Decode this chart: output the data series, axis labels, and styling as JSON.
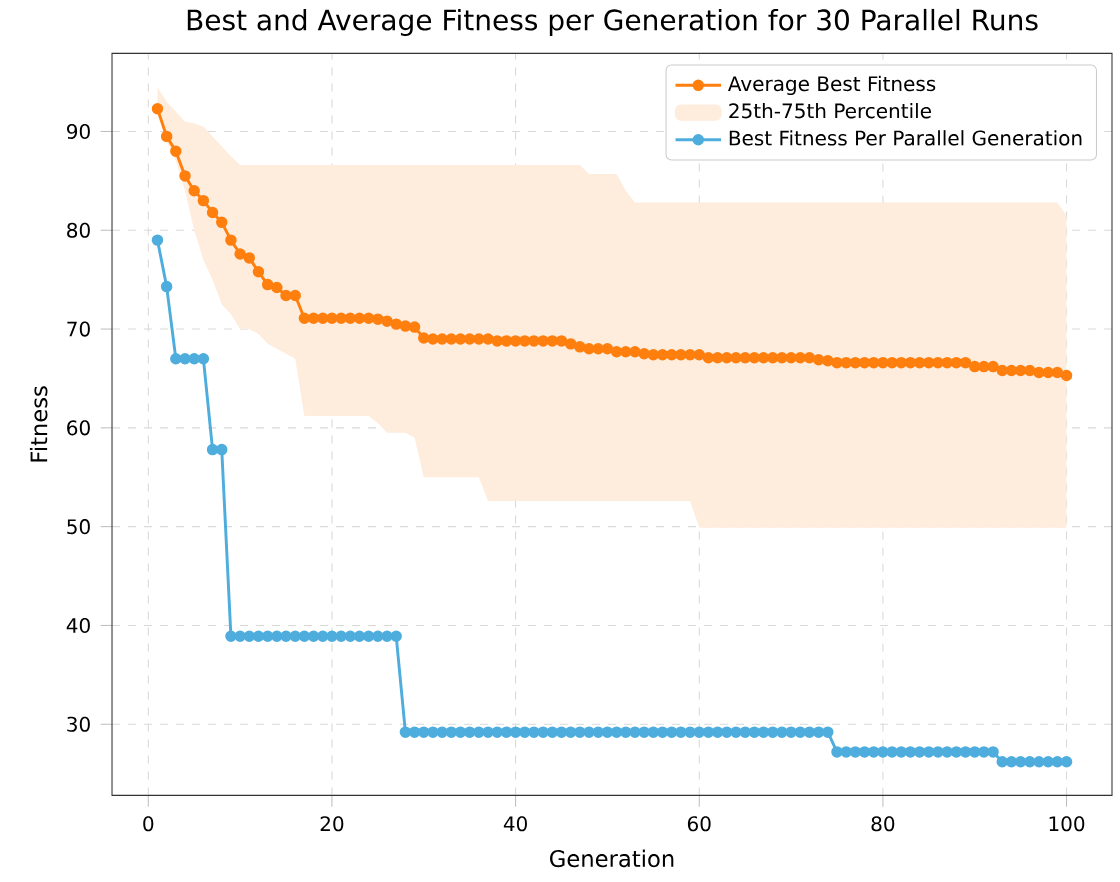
{
  "chart_data": {
    "type": "line",
    "title": "Best and Average Fitness per Generation for 30 Parallel Runs",
    "xlabel": "Generation",
    "ylabel": "Fitness",
    "x": [
      1,
      2,
      3,
      4,
      5,
      6,
      7,
      8,
      9,
      10,
      11,
      12,
      13,
      14,
      15,
      16,
      17,
      18,
      19,
      20,
      21,
      22,
      23,
      24,
      25,
      26,
      27,
      28,
      29,
      30,
      31,
      32,
      33,
      34,
      35,
      36,
      37,
      38,
      39,
      40,
      41,
      42,
      43,
      44,
      45,
      46,
      47,
      48,
      49,
      50,
      51,
      52,
      53,
      54,
      55,
      56,
      57,
      58,
      59,
      60,
      61,
      62,
      63,
      64,
      65,
      66,
      67,
      68,
      69,
      70,
      71,
      72,
      73,
      74,
      75,
      76,
      77,
      78,
      79,
      80,
      81,
      82,
      83,
      84,
      85,
      86,
      87,
      88,
      89,
      90,
      91,
      92,
      93,
      94,
      95,
      96,
      97,
      98,
      99,
      100
    ],
    "series": [
      {
        "name": "Average Best Fitness",
        "color": "#ff7f0e",
        "values": [
          92.3,
          89.5,
          88,
          85.5,
          84,
          83,
          81.8,
          80.8,
          79,
          77.6,
          77.2,
          75.8,
          74.5,
          74.2,
          73.4,
          73.4,
          71.1,
          71.1,
          71.1,
          71.1,
          71.1,
          71.1,
          71.1,
          71.1,
          71,
          70.8,
          70.5,
          70.3,
          70.2,
          69.1,
          69,
          69,
          69,
          69,
          69,
          69,
          69,
          68.8,
          68.8,
          68.8,
          68.8,
          68.8,
          68.8,
          68.8,
          68.8,
          68.5,
          68.2,
          68,
          68,
          68,
          67.7,
          67.7,
          67.7,
          67.5,
          67.4,
          67.4,
          67.4,
          67.4,
          67.4,
          67.4,
          67.1,
          67.1,
          67.1,
          67.1,
          67.1,
          67.1,
          67.1,
          67.1,
          67.1,
          67.1,
          67.1,
          67.1,
          66.9,
          66.8,
          66.6,
          66.6,
          66.6,
          66.6,
          66.6,
          66.6,
          66.6,
          66.6,
          66.6,
          66.6,
          66.6,
          66.6,
          66.6,
          66.6,
          66.6,
          66.2,
          66.2,
          66.2,
          65.8,
          65.8,
          65.8,
          65.8,
          65.6,
          65.6,
          65.6,
          65.3
        ]
      },
      {
        "type": "area",
        "name": "25th-75th Percentile",
        "color": "#feecdd",
        "values": [
          null,
          null,
          null,
          null,
          null,
          null,
          null,
          null,
          null,
          null,
          null,
          null,
          null,
          null,
          null,
          null,
          null,
          null,
          null,
          null,
          null,
          null,
          null,
          null,
          null,
          null,
          null,
          null,
          null,
          null,
          null,
          null,
          null,
          null,
          null,
          null,
          null,
          null,
          null,
          null,
          null,
          null,
          null,
          null,
          null,
          null,
          null,
          null,
          null,
          null,
          null,
          null,
          null,
          null,
          null,
          null,
          null,
          null,
          null,
          null,
          null,
          null,
          null,
          null,
          null,
          null,
          null,
          null,
          null,
          null,
          null,
          null,
          null,
          null,
          null,
          null,
          null,
          null,
          null,
          null,
          null,
          null,
          null,
          null,
          null,
          null,
          null,
          null,
          null,
          null,
          null,
          null,
          null,
          null,
          null,
          null,
          null,
          null,
          null,
          null
        ],
        "lower": [
          92,
          89,
          87,
          84,
          80,
          77,
          75,
          72.5,
          71.5,
          70,
          70,
          69.5,
          68.5,
          68,
          67.5,
          67,
          61.2,
          61.2,
          61.2,
          61.2,
          61.2,
          61.2,
          61.2,
          61.2,
          60.5,
          59.5,
          59.5,
          59.5,
          59,
          55,
          55,
          55,
          55,
          55,
          55,
          55,
          52.6,
          52.6,
          52.6,
          52.6,
          52.6,
          52.6,
          52.6,
          52.6,
          52.6,
          52.6,
          52.6,
          52.6,
          52.6,
          52.6,
          52.6,
          52.6,
          52.6,
          52.6,
          52.6,
          52.6,
          52.6,
          52.6,
          52.6,
          49.9,
          49.9,
          49.9,
          49.9,
          49.9,
          49.9,
          49.9,
          49.9,
          49.9,
          49.9,
          49.9,
          49.9,
          49.9,
          49.9,
          49.9,
          49.9,
          49.9,
          49.9,
          49.9,
          49.9,
          49.9,
          49.9,
          49.9,
          49.9,
          49.9,
          49.9,
          49.9,
          49.9,
          49.9,
          49.9,
          49.9,
          49.9,
          49.9,
          49.9,
          49.9,
          49.9,
          49.9,
          49.9,
          49.9,
          49.9,
          49.9
        ],
        "upper": [
          94.5,
          93,
          92,
          91,
          90.8,
          90.5,
          89.5,
          88.5,
          87.5,
          86.6,
          86.6,
          86.6,
          86.6,
          86.6,
          86.6,
          86.6,
          86.6,
          86.6,
          86.6,
          86.6,
          86.6,
          86.6,
          86.6,
          86.6,
          86.6,
          86.6,
          86.6,
          86.6,
          86.6,
          86.6,
          86.6,
          86.6,
          86.6,
          86.6,
          86.6,
          86.6,
          86.6,
          86.6,
          86.6,
          86.6,
          86.6,
          86.6,
          86.6,
          86.6,
          86.6,
          86.6,
          86.6,
          85.7,
          85.7,
          85.7,
          85.7,
          84,
          82.8,
          82.8,
          82.8,
          82.8,
          82.8,
          82.8,
          82.8,
          82.8,
          82.8,
          82.8,
          82.8,
          82.8,
          82.8,
          82.8,
          82.8,
          82.8,
          82.8,
          82.8,
          82.8,
          82.8,
          82.8,
          82.8,
          82.8,
          82.8,
          82.8,
          82.8,
          82.8,
          82.8,
          82.8,
          82.8,
          82.8,
          82.8,
          82.8,
          82.8,
          82.8,
          82.8,
          82.8,
          82.8,
          82.8,
          82.8,
          82.8,
          82.8,
          82.8,
          82.8,
          82.8,
          82.8,
          82.8,
          81.5
        ]
      },
      {
        "name": "Best Fitness Per Parallel Generation",
        "color": "#4eaddd",
        "values": [
          79,
          74.3,
          67,
          67,
          67,
          67,
          57.8,
          57.8,
          38.9,
          38.9,
          38.9,
          38.9,
          38.9,
          38.9,
          38.9,
          38.9,
          38.9,
          38.9,
          38.9,
          38.9,
          38.9,
          38.9,
          38.9,
          38.9,
          38.9,
          38.9,
          38.9,
          29.2,
          29.2,
          29.2,
          29.2,
          29.2,
          29.2,
          29.2,
          29.2,
          29.2,
          29.2,
          29.2,
          29.2,
          29.2,
          29.2,
          29.2,
          29.2,
          29.2,
          29.2,
          29.2,
          29.2,
          29.2,
          29.2,
          29.2,
          29.2,
          29.2,
          29.2,
          29.2,
          29.2,
          29.2,
          29.2,
          29.2,
          29.2,
          29.2,
          29.2,
          29.2,
          29.2,
          29.2,
          29.2,
          29.2,
          29.2,
          29.2,
          29.2,
          29.2,
          29.2,
          29.2,
          29.2,
          29.2,
          27.2,
          27.2,
          27.2,
          27.2,
          27.2,
          27.2,
          27.2,
          27.2,
          27.2,
          27.2,
          27.2,
          27.2,
          27.2,
          27.2,
          27.2,
          27.2,
          27.2,
          27.2,
          26.2,
          26.2,
          26.2,
          26.2,
          26.2,
          26.2,
          26.2,
          26.2
        ]
      }
    ],
    "xlim": [
      -3.95,
      104.95
    ],
    "ylim": [
      22.8,
      97.9
    ],
    "xticks": [
      0,
      20,
      40,
      60,
      80,
      100
    ],
    "yticks": [
      30,
      40,
      50,
      60,
      70,
      80,
      90
    ],
    "grid": true,
    "legend": "top right",
    "marker": "circle",
    "line_style": "solid"
  }
}
